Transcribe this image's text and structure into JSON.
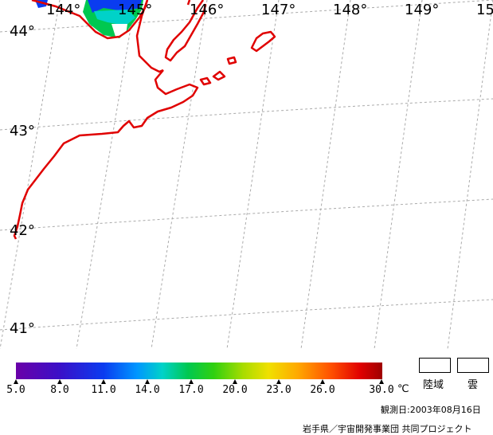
{
  "map": {
    "latitudes": [
      "44°",
      "43°",
      "42°",
      "41°"
    ],
    "longitudes": [
      "144°",
      "145°",
      "146°",
      "147°",
      "148°",
      "149°",
      "15"
    ],
    "coastline_color": "#e00000",
    "grid_color": "#aaaaaa"
  },
  "legend": {
    "ticks": [
      "5.0",
      "8.0",
      "11.0",
      "14.0",
      "17.0",
      "20.0",
      "23.0",
      "26.0",
      "30.0"
    ],
    "unit": "℃",
    "land_label": "陸域",
    "cloud_label": "雲"
  },
  "footer": {
    "observation_date": "観測日:2003年08月16日",
    "credit": "岩手県／宇宙開発事業団 共同プロジェクト"
  }
}
